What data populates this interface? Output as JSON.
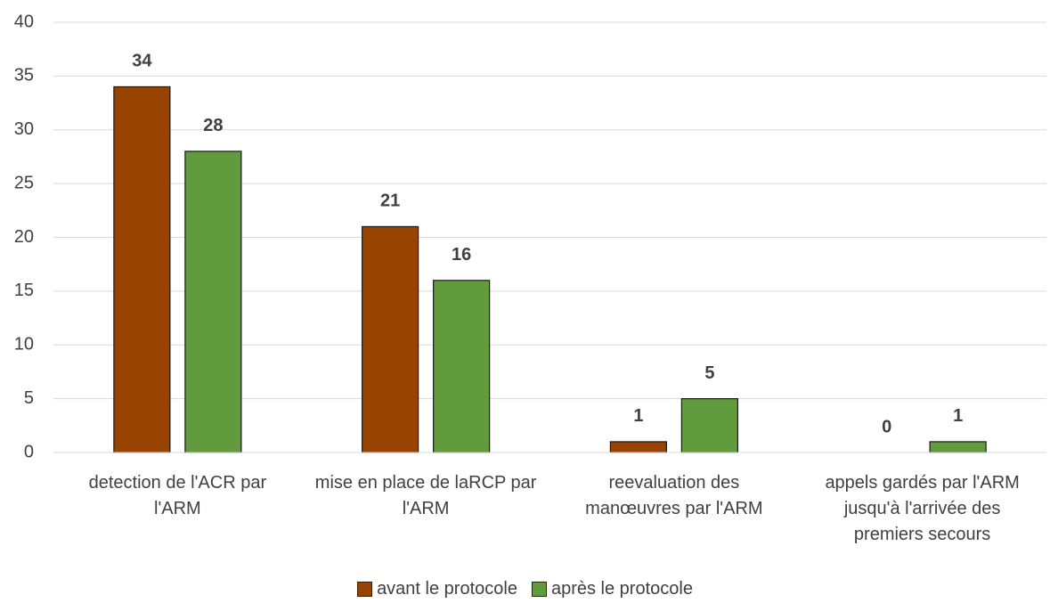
{
  "chart_data": {
    "type": "bar",
    "categories": [
      "detection de l'ACR par l'ARM",
      "mise en place de laRCP par l'ARM",
      "reevaluation des manœuvres par l'ARM",
      "appels gardés par l'ARM jusqu'à l'arrivée des premiers secours"
    ],
    "series": [
      {
        "name": "avant le protocole",
        "color": "#984300",
        "values": [
          34,
          21,
          1,
          0
        ]
      },
      {
        "name": "après le protocole",
        "color": "#629b3d",
        "values": [
          28,
          16,
          5,
          1
        ]
      }
    ],
    "ylim": [
      0,
      40
    ],
    "yticks": [
      0,
      5,
      10,
      15,
      20,
      25,
      30,
      35,
      40
    ],
    "grid": true,
    "legend": "bottom"
  }
}
